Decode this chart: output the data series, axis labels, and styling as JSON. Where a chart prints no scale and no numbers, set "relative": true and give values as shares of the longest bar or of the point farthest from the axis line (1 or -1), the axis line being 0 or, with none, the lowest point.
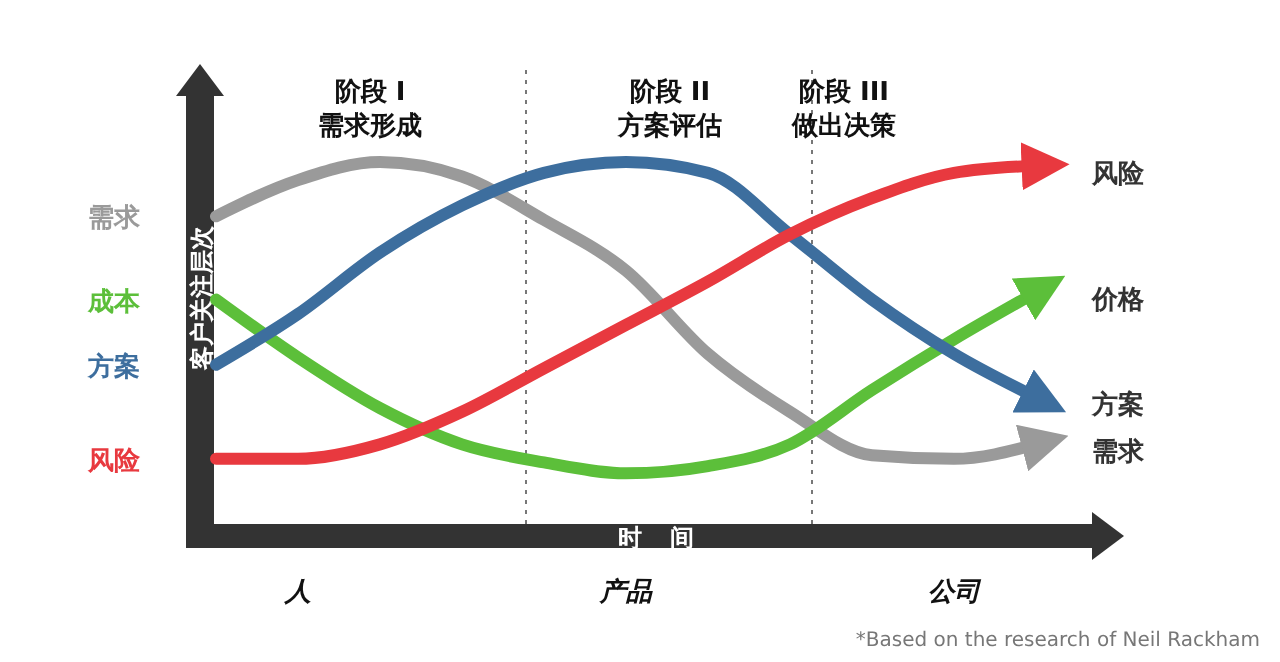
{
  "chart_data": {
    "type": "line",
    "relative": true,
    "xlabel": "时间",
    "ylabel": "客户关注层次",
    "categories": [
      null,
      "人",
      null,
      null,
      null,
      "产品",
      null,
      null,
      null,
      "公司",
      null
    ],
    "series": [
      {
        "name": "需求",
        "color": "#9a9a9a",
        "values": [
          0.85,
          0.95,
          1.0,
          0.96,
          0.84,
          0.7,
          0.47,
          0.31,
          0.19,
          0.18,
          0.22
        ]
      },
      {
        "name": "成本",
        "color": "#5cbf3a",
        "values": [
          0.62,
          0.46,
          0.32,
          0.22,
          0.17,
          0.14,
          0.16,
          0.22,
          0.37,
          0.51,
          0.64
        ]
      },
      {
        "name": "方案",
        "color": "#3d6e9e",
        "values": [
          0.44,
          0.58,
          0.75,
          0.88,
          0.97,
          1.0,
          0.97,
          0.8,
          0.62,
          0.47,
          0.35
        ]
      },
      {
        "name": "风险",
        "color": "#e8393f",
        "values": [
          0.18,
          0.18,
          0.22,
          0.31,
          0.43,
          0.55,
          0.67,
          0.8,
          0.9,
          0.97,
          0.99
        ]
      }
    ],
    "annotations": [
      "阶段 I\n需求形成",
      "阶段 II\n方案评估",
      "阶段 III\n做出决策",
      "风险",
      "价格",
      "方案",
      "需求",
      "*Based on the research of Neil Rackham"
    ]
  }
}
